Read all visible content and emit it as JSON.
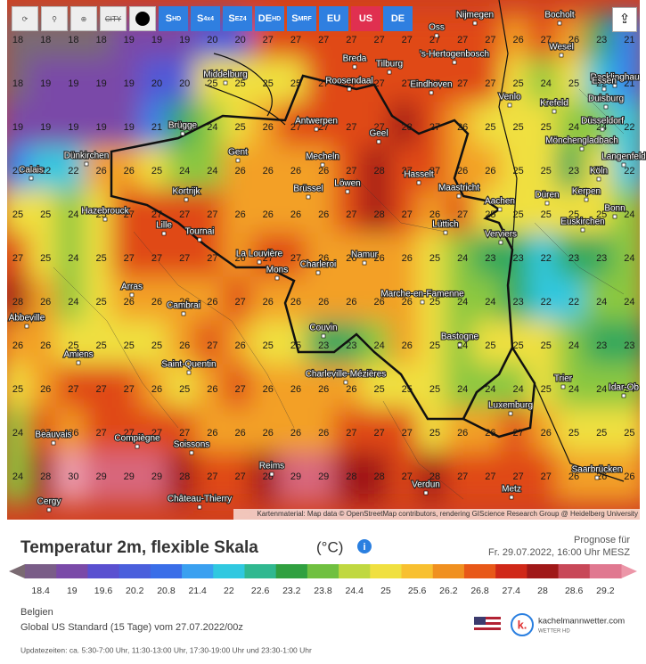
{
  "toolbar": {
    "buttons": [
      "CITY"
    ],
    "models": [
      {
        "main": "S",
        "sub": "HD"
      },
      {
        "main": "S",
        "sub": "4x4"
      },
      {
        "main": "S",
        "sub": "EZ4"
      },
      {
        "main": "DE",
        "sub": "HD"
      },
      {
        "main": "S",
        "sub": "MRF"
      }
    ],
    "regions": [
      "EU",
      "US",
      "DE"
    ]
  },
  "map": {
    "grid": [
      [
        18,
        18,
        18,
        18,
        19,
        19,
        19,
        20,
        20,
        27,
        27,
        27,
        27,
        27,
        27,
        27,
        27,
        27,
        26,
        27,
        26,
        23,
        21
      ],
      [
        18,
        19,
        19,
        19,
        19,
        20,
        20,
        25,
        25,
        25,
        25,
        27,
        27,
        27,
        27,
        27,
        27,
        27,
        25,
        24,
        25,
        22,
        21
      ],
      [
        19,
        19,
        19,
        19,
        19,
        21,
        23,
        24,
        25,
        26,
        27,
        27,
        27,
        27,
        28,
        27,
        26,
        25,
        25,
        25,
        24,
        24,
        22
      ],
      [
        21,
        22,
        22,
        26,
        26,
        25,
        24,
        24,
        26,
        26,
        26,
        26,
        27,
        28,
        27,
        27,
        26,
        26,
        25,
        25,
        23,
        25,
        22
      ],
      [
        25,
        25,
        24,
        25,
        27,
        27,
        27,
        27,
        26,
        26,
        26,
        26,
        27,
        28,
        27,
        26,
        27,
        25,
        25,
        25,
        25,
        25,
        24
      ],
      [
        27,
        25,
        24,
        25,
        27,
        27,
        27,
        27,
        26,
        27,
        27,
        26,
        26,
        26,
        26,
        25,
        24,
        23,
        23,
        22,
        23,
        23,
        24
      ],
      [
        28,
        26,
        24,
        25,
        26,
        26,
        26,
        26,
        27,
        26,
        26,
        26,
        26,
        26,
        26,
        25,
        24,
        24,
        23,
        22,
        22,
        24,
        24
      ],
      [
        26,
        26,
        25,
        25,
        25,
        25,
        26,
        27,
        26,
        25,
        25,
        23,
        23,
        24,
        26,
        25,
        24,
        25,
        25,
        25,
        24,
        23,
        23
      ],
      [
        25,
        26,
        27,
        27,
        27,
        26,
        25,
        26,
        27,
        26,
        26,
        26,
        26,
        25,
        25,
        25,
        24,
        24,
        24,
        25,
        24,
        24,
        24
      ],
      [
        24,
        27,
        26,
        27,
        27,
        27,
        27,
        26,
        26,
        26,
        26,
        26,
        27,
        27,
        27,
        25,
        26,
        26,
        27,
        26,
        25,
        25,
        25
      ],
      [
        24,
        28,
        30,
        29,
        29,
        29,
        28,
        27,
        27,
        28,
        29,
        29,
        28,
        28,
        27,
        28,
        27,
        27,
        27,
        27,
        26,
        26,
        26
      ]
    ],
    "cities": [
      "Nijmegen",
      "Oss",
      "Bocholt",
      "'s-Hertogenbosch",
      "Wesel",
      "Breda",
      "Tilburg",
      "Recklinghau",
      "Middelburg",
      "Roosendaal",
      "Eindhoven",
      "Essen",
      "Venlo",
      "Duisburg",
      "Krefeld",
      "Brügge",
      "Antwerpen",
      "Düsseldorf",
      "Geel",
      "Mönchengladbach",
      "Gent",
      "Dünkirchen",
      "Mecheln",
      "Langenfeld",
      "Calais",
      "Hasselt",
      "Köln",
      "Brüssel",
      "Löwen",
      "Maastricht",
      "Kortrijk",
      "Düren",
      "Kerpen",
      "Aachen",
      "Bonn",
      "Hazebrouck",
      "Lüttich",
      "Euskirchen",
      "Lille",
      "Verviers",
      "Tournai",
      "La Louvière",
      "Namur",
      "Mons",
      "Charleroi",
      "Arras",
      "Marche-en-Famenne",
      "Cambrai",
      "Abbeville",
      "Couvin",
      "Bastogne",
      "Amiens",
      "Saint-Quentin",
      "Trier",
      "Charleville-Mézières",
      "Luxemburg",
      "Idar-Ob",
      "Beauvais",
      "Compiègne",
      "Soissons",
      "Reims",
      "Saarbrücken",
      "Verdun",
      "Metz",
      "Château-Thierry",
      "Cergy"
    ],
    "attribution": "Kartenmaterial: Map data © OpenStreetMap contributors, rendering GIScience Research Group @ Heidelberg University"
  },
  "footer": {
    "title": "Temperatur 2m, flexible Skala",
    "unit": "(°C)",
    "forecast_label": "Prognose für",
    "forecast_time": "Fr. 29.07.2022, 16:00 Uhr MESZ",
    "scale_ticks": [
      18.4,
      19,
      19.6,
      20.2,
      20.8,
      21.4,
      22,
      22.6,
      23.2,
      23.8,
      24.4,
      25,
      25.6,
      26.2,
      26.8,
      27.4,
      28,
      28.6,
      29.2
    ],
    "region": "Belgien",
    "model": "Global US Standard (15 Tage) vom 27.07.2022/00z",
    "updates": "Updatezeiten: ca. 5:30-7:00 Uhr, 11:30-13:00 Uhr, 17:30-19:00 Uhr und 23:30-1:00 Uhr",
    "brand": "kachelmannwetter.com",
    "brand_sub": "WETTER HD"
  }
}
